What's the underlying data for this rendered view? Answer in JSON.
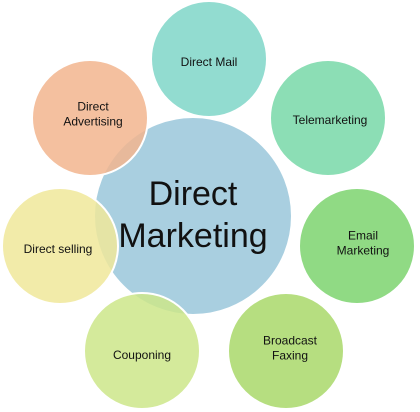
{
  "center": {
    "lines": [
      "Direct",
      "Marketing"
    ],
    "fill": "#a9cfe0",
    "stroke": "#ffffff"
  },
  "satellites": [
    {
      "id": "direct-mail",
      "lines": [
        "Direct Mail"
      ],
      "fill": "#7fd6c8"
    },
    {
      "id": "telemarketing",
      "lines": [
        "Telemarketing"
      ],
      "fill": "#78d8a8"
    },
    {
      "id": "email-marketing",
      "lines": [
        "Email",
        "Marketing"
      ],
      "fill": "#7dd36f"
    },
    {
      "id": "broadcast-faxing",
      "lines": [
        "Broadcast",
        "Faxing"
      ],
      "fill": "#a9d86a"
    },
    {
      "id": "couponing",
      "lines": [
        "Couponing"
      ],
      "fill": "#cde68a"
    },
    {
      "id": "direct-selling",
      "lines": [
        "Direct selling"
      ],
      "fill": "#f0e79a"
    },
    {
      "id": "direct-advertising",
      "lines": [
        "Direct",
        "Advertising"
      ],
      "fill": "#f2b58e"
    }
  ]
}
